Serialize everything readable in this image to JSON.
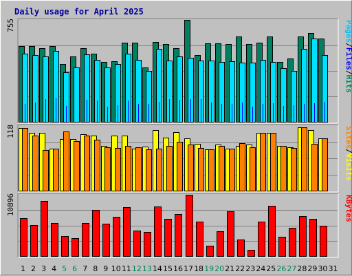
{
  "chart_data": {
    "title": "Daily usage for April 2025",
    "month": "April 2025",
    "days": [
      "1",
      "2",
      "3",
      "4",
      "5",
      "6",
      "7",
      "8",
      "9",
      "10",
      "11",
      "12",
      "13",
      "14",
      "15",
      "16",
      "17",
      "18",
      "19",
      "20",
      "21",
      "22",
      "23",
      "24",
      "25",
      "26",
      "27",
      "28",
      "29",
      "30",
      "31"
    ],
    "weekend_days": [
      "5",
      "6",
      "12",
      "13",
      "19",
      "20",
      "26",
      "27"
    ],
    "panels": [
      {
        "type": "bar",
        "name": "hits-files-pages",
        "ymax": 755,
        "ymax_label": "755",
        "right_labels": [
          {
            "text": "Hits",
            "color": "#00805c"
          },
          {
            "text": "/",
            "color": "#000000"
          },
          {
            "text": "Files",
            "color": "#0000ff"
          },
          {
            "text": "/",
            "color": "#000000"
          },
          {
            "text": "Pages",
            "color": "#00c0ff"
          }
        ],
        "series": [
          {
            "name": "Hits",
            "color": "#008060",
            "values": [
              562,
              562,
              548,
              562,
              427,
              483,
              548,
              506,
              444,
              450,
              588,
              588,
              404,
              594,
              575,
              548,
              754,
              496,
              581,
              581,
              575,
              635,
              575,
              588,
              631,
              446,
              469,
              631,
              657,
              616,
              0
            ]
          },
          {
            "name": "Files",
            "color": "#00e0ff",
            "values": [
              506,
              494,
              486,
              525,
              369,
              404,
              500,
              461,
              404,
              430,
              506,
              461,
              378,
              542,
              455,
              486,
              475,
              452,
              455,
              444,
              450,
              441,
              441,
              460,
              444,
              396,
              378,
              541,
              618,
              494,
              0
            ]
          },
          {
            "name": "Pages",
            "color": "#0000ff",
            "values": [
              131,
              144,
              170,
              178,
              118,
              0,
              163,
              157,
              111,
              124,
              157,
              131,
              131,
              150,
              170,
              163,
              170,
              170,
              144,
              131,
              131,
              144,
              111,
              131,
              137,
              118,
              124,
              131,
              137,
              150,
              0
            ]
          }
        ]
      },
      {
        "type": "bar",
        "name": "visits-sites",
        "ymax": 118,
        "ymax_label": "118",
        "right_labels": [
          {
            "text": "Visits",
            "color": "#ffff00"
          },
          {
            "text": "/",
            "color": "#000000"
          },
          {
            "text": "Sites",
            "color": "#ff8000"
          }
        ],
        "series": [
          {
            "name": "Visits",
            "color": "#ffff00",
            "values": [
              114,
              105,
              105,
              76,
              94,
              94,
              103,
              101,
              82,
              101,
              101,
              76,
              80,
              110,
              97,
              107,
              95,
              85,
              75,
              84,
              77,
              81,
              84,
              105,
              105,
              81,
              79,
              115,
              110,
              95,
              0
            ]
          },
          {
            "name": "Sites",
            "color": "#ff8000",
            "values": [
              114,
              100,
              74,
              76,
              108,
              91,
              100,
              93,
              79,
              78,
              82,
              79,
              75,
              76,
              82,
              89,
              84,
              78,
              75,
              82,
              76,
              87,
              79,
              105,
              105,
              82,
              78,
              115,
              85,
              95,
              0
            ]
          }
        ]
      },
      {
        "type": "bar",
        "name": "kbytes",
        "ymax": 10896,
        "ymax_label": "10896",
        "right_labels": [
          {
            "text": "KBytes",
            "color": "#ff0000"
          }
        ],
        "series": [
          {
            "name": "KBytes",
            "color": "#ff0000",
            "values": [
              6690,
              5550,
              9820,
              5860,
              3580,
              3150,
              5850,
              8150,
              5770,
              7030,
              8670,
              4510,
              4330,
              8850,
              6620,
              7500,
              10896,
              6110,
              1840,
              4400,
              7900,
              2880,
              1160,
              6110,
              8990,
              3390,
              4960,
              7070,
              6640,
              5430,
              0
            ]
          }
        ]
      }
    ]
  }
}
